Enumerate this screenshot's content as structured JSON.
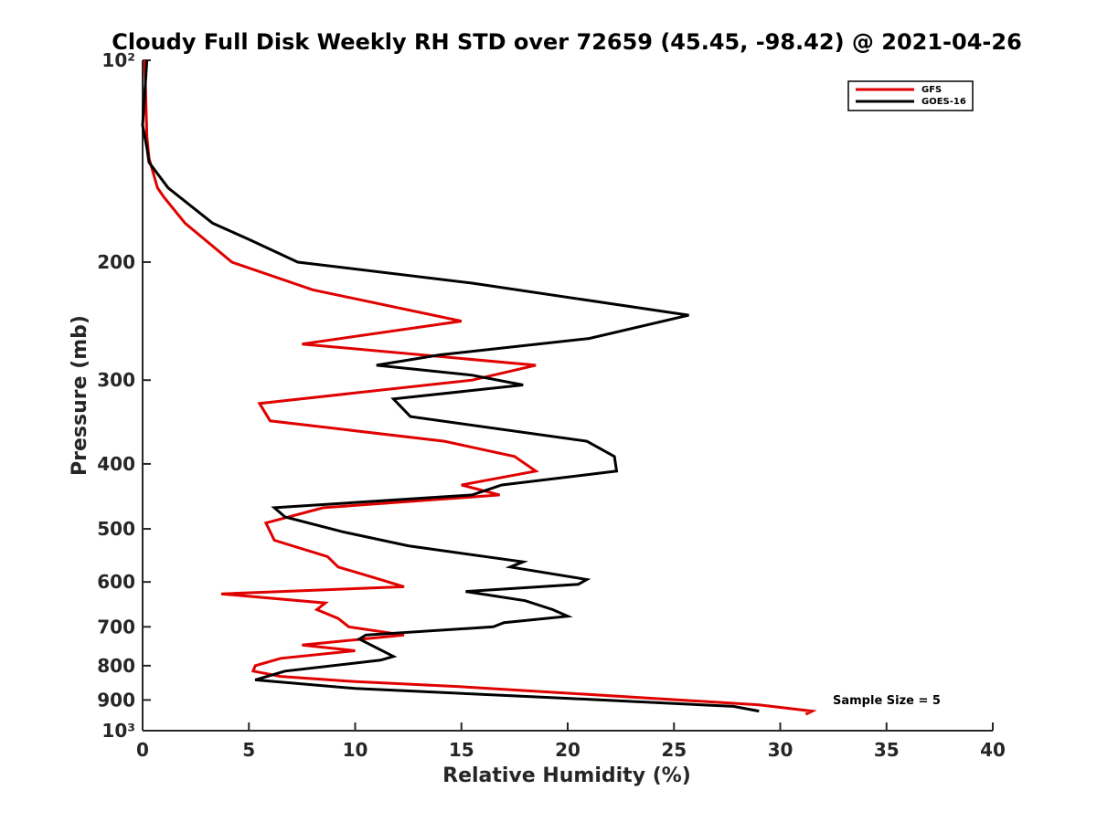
{
  "chart_data": {
    "type": "line",
    "title": "Cloudy Full Disk Weekly RH STD over 72659 (45.45, -98.42) @ 2021-04-26",
    "xlabel": "Relative Humidity (%)",
    "ylabel": "Pressure (mb)",
    "xlim": [
      0,
      40
    ],
    "ylim": [
      100,
      1000
    ],
    "yscale": "log",
    "y_reversed": true,
    "x_ticks": [
      0,
      5,
      10,
      15,
      20,
      25,
      30,
      35,
      40
    ],
    "x_tick_labels": [
      "0",
      "5",
      "10",
      "15",
      "20",
      "25",
      "30",
      "35",
      "40"
    ],
    "y_ticks": [
      100,
      200,
      300,
      400,
      500,
      600,
      700,
      800,
      900,
      1000
    ],
    "y_tick_labels": [
      "10²",
      "200",
      "300",
      "400",
      "500",
      "600",
      "700",
      "800",
      "900",
      "10³"
    ],
    "grid": false,
    "legend_position": "top-right",
    "annotation": "Sample Size = 5",
    "series": [
      {
        "name": "GFS",
        "color": "#e00000",
        "points": [
          [
            0.1,
            100
          ],
          [
            0.2,
            130
          ],
          [
            0.3,
            140
          ],
          [
            0.7,
            155
          ],
          [
            1.0,
            160
          ],
          [
            2.0,
            175
          ],
          [
            4.2,
            200
          ],
          [
            8.0,
            220
          ],
          [
            15.0,
            245
          ],
          [
            7.5,
            265
          ],
          [
            18.5,
            285
          ],
          [
            15.5,
            300
          ],
          [
            5.5,
            325
          ],
          [
            6.0,
            345
          ],
          [
            14.2,
            370
          ],
          [
            17.5,
            390
          ],
          [
            18.5,
            410
          ],
          [
            15.0,
            430
          ],
          [
            16.8,
            445
          ],
          [
            8.5,
            465
          ],
          [
            5.8,
            490
          ],
          [
            6.2,
            520
          ],
          [
            8.7,
            550
          ],
          [
            9.2,
            570
          ],
          [
            10.8,
            590
          ],
          [
            12.3,
            610
          ],
          [
            3.7,
            625
          ],
          [
            8.6,
            645
          ],
          [
            8.2,
            660
          ],
          [
            9.2,
            680
          ],
          [
            9.7,
            700
          ],
          [
            12.3,
            720
          ],
          [
            7.5,
            745
          ],
          [
            10.0,
            760
          ],
          [
            6.5,
            780
          ],
          [
            5.3,
            800
          ],
          [
            5.2,
            815
          ],
          [
            6.5,
            830
          ],
          [
            10.0,
            845
          ],
          [
            15.0,
            860
          ],
          [
            24.0,
            895
          ],
          [
            29.0,
            915
          ],
          [
            31.5,
            935
          ],
          [
            31.2,
            945
          ]
        ]
      },
      {
        "name": "GOES-16",
        "color": "#000000",
        "points": [
          [
            0.2,
            100
          ],
          [
            0.0,
            125
          ],
          [
            0.2,
            135
          ],
          [
            0.3,
            142
          ],
          [
            1.2,
            155
          ],
          [
            3.3,
            175
          ],
          [
            5.0,
            185
          ],
          [
            7.3,
            200
          ],
          [
            15.5,
            215
          ],
          [
            25.7,
            240
          ],
          [
            21.0,
            260
          ],
          [
            14.0,
            275
          ],
          [
            11.0,
            285
          ],
          [
            15.5,
            295
          ],
          [
            17.9,
            305
          ],
          [
            11.8,
            320
          ],
          [
            12.6,
            340
          ],
          [
            20.9,
            370
          ],
          [
            22.2,
            390
          ],
          [
            22.3,
            410
          ],
          [
            16.9,
            430
          ],
          [
            15.5,
            445
          ],
          [
            6.2,
            465
          ],
          [
            6.7,
            480
          ],
          [
            9.4,
            505
          ],
          [
            12.5,
            530
          ],
          [
            17.9,
            560
          ],
          [
            17.3,
            570
          ],
          [
            20.9,
            595
          ],
          [
            20.5,
            605
          ],
          [
            15.2,
            620
          ],
          [
            18.0,
            640
          ],
          [
            19.3,
            660
          ],
          [
            20.0,
            675
          ],
          [
            17.0,
            690
          ],
          [
            16.5,
            700
          ],
          [
            10.5,
            720
          ],
          [
            10.2,
            730
          ],
          [
            11.8,
            775
          ],
          [
            11.2,
            785
          ],
          [
            6.7,
            815
          ],
          [
            5.3,
            840
          ],
          [
            10.0,
            865
          ],
          [
            20.0,
            895
          ],
          [
            27.8,
            920
          ],
          [
            29.0,
            935
          ]
        ]
      }
    ]
  }
}
